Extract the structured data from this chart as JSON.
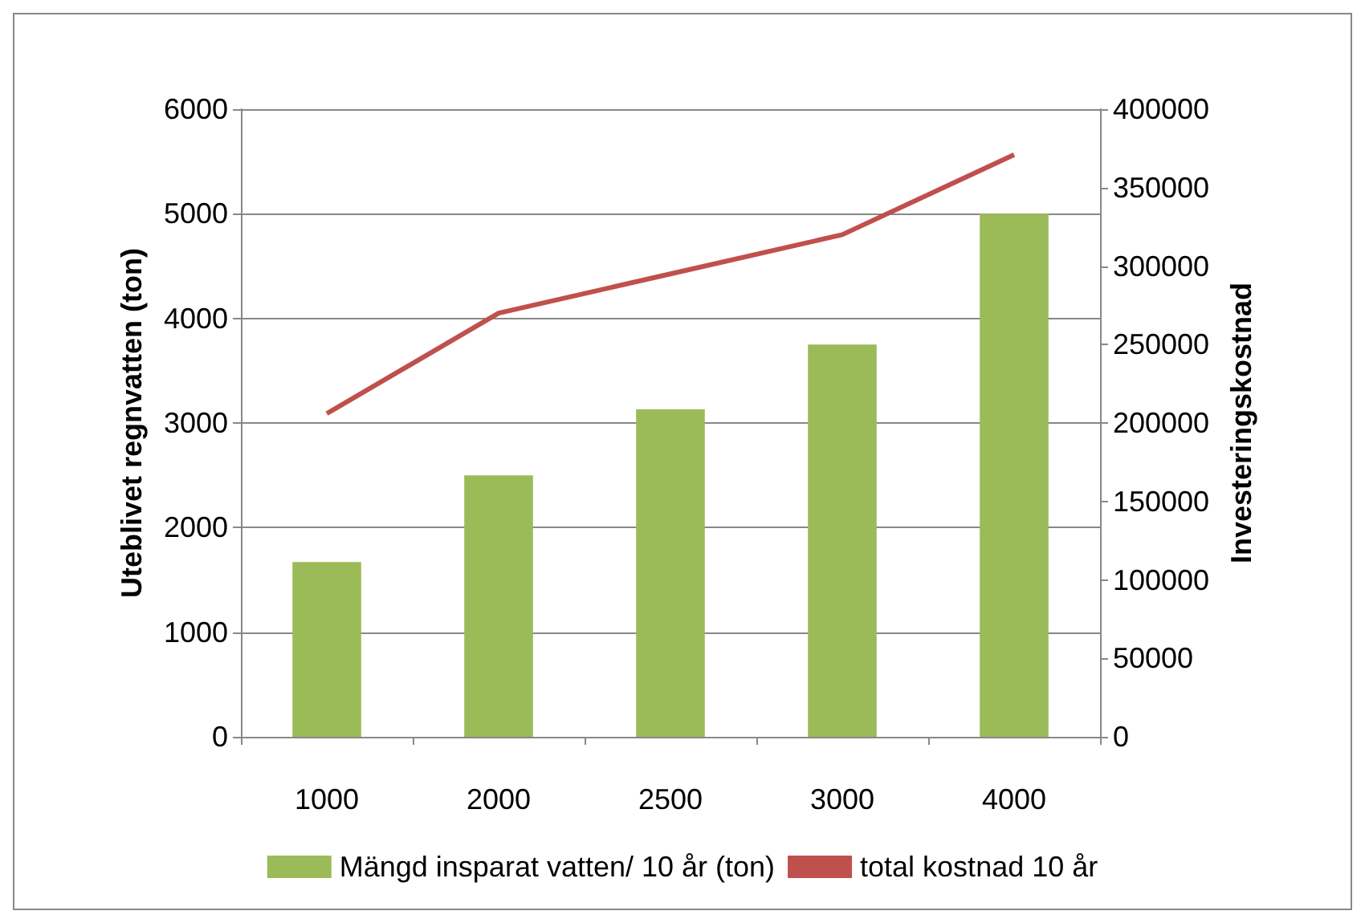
{
  "chart_data": {
    "type": "bar",
    "ylabel": "Uteblivet regnvatten (ton)",
    "y2label": "Investeringskostnad",
    "categories": [
      "1000",
      "2000",
      "2500",
      "3000",
      "4000"
    ],
    "series": [
      {
        "name": "Mängd insparat vatten/ 10 år (ton)",
        "color": "#9bbb59",
        "values": [
          1670,
          2500,
          3130,
          3750,
          5000
        ]
      },
      {
        "name": "total kostnad 10 år",
        "type": "line",
        "axis": "y2",
        "color": "#c0504d",
        "values": [
          206000,
          270000,
          295000,
          320000,
          371000
        ]
      }
    ],
    "ylim": [
      0,
      6000
    ],
    "yticks": [
      0,
      1000,
      2000,
      3000,
      4000,
      5000,
      6000
    ],
    "y2lim": [
      0,
      400000
    ],
    "y2ticks": [
      0,
      50000,
      100000,
      150000,
      200000,
      250000,
      300000,
      350000,
      400000
    ],
    "grid": "y",
    "legend": "bottom",
    "marker": "none"
  }
}
